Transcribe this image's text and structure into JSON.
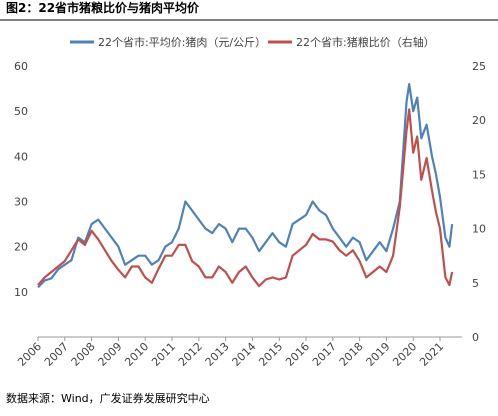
{
  "chart_data": {
    "type": "line",
    "title": "图2：22省市猪粮比价与猪肉平均价",
    "source": "数据来源：Wind，广发证券发展研究中心",
    "x": [
      2006.0,
      2006.25,
      2006.5,
      2006.75,
      2007.0,
      2007.25,
      2007.5,
      2007.75,
      2008.0,
      2008.25,
      2008.5,
      2008.75,
      2009.0,
      2009.25,
      2009.5,
      2009.75,
      2010.0,
      2010.25,
      2010.5,
      2010.75,
      2011.0,
      2011.25,
      2011.5,
      2011.75,
      2012.0,
      2012.25,
      2012.5,
      2012.75,
      2013.0,
      2013.25,
      2013.5,
      2013.75,
      2014.0,
      2014.25,
      2014.5,
      2014.75,
      2015.0,
      2015.25,
      2015.5,
      2015.75,
      2016.0,
      2016.25,
      2016.5,
      2016.75,
      2017.0,
      2017.25,
      2017.5,
      2017.75,
      2018.0,
      2018.25,
      2018.5,
      2018.75,
      2019.0,
      2019.25,
      2019.5,
      2019.75,
      2019.85,
      2020.0,
      2020.15,
      2020.3,
      2020.5,
      2020.7,
      2020.85,
      2021.0,
      2021.2,
      2021.35,
      2021.45
    ],
    "series": [
      {
        "name": "22个省市:平均价:猪肉（元/公斤）",
        "color": "#4f81bd",
        "values": [
          11,
          12.5,
          13,
          15,
          16,
          17,
          22,
          21,
          25,
          26,
          24,
          22,
          20,
          16,
          17,
          18,
          18,
          16,
          17,
          20,
          21,
          24,
          30,
          28,
          26,
          24,
          23,
          25,
          24,
          21,
          24,
          24,
          22,
          19,
          21,
          23,
          21,
          20,
          25,
          26,
          27,
          30,
          28,
          27,
          24,
          22,
          20,
          22,
          21,
          17,
          19,
          21,
          19,
          24,
          30,
          52,
          56,
          50,
          53,
          44,
          47,
          40,
          36,
          31,
          22,
          20,
          25
        ]
      },
      {
        "name": "22个省市:猪粮比价（右轴）",
        "color": "#c0504d",
        "axis": "y2",
        "values": [
          4.8,
          5.5,
          6,
          6.5,
          7,
          8,
          9,
          8.5,
          9.8,
          9,
          8,
          7,
          6.2,
          5.5,
          6.5,
          6.5,
          5.5,
          5,
          6.3,
          7.5,
          7.5,
          8.5,
          8.5,
          7,
          6.5,
          5.5,
          5.5,
          6.5,
          6,
          5,
          6,
          6.5,
          5.5,
          4.7,
          5.3,
          5.5,
          5.3,
          5.5,
          7.5,
          8,
          8.5,
          9.5,
          9,
          9,
          8.8,
          8,
          7.5,
          8,
          7,
          5.5,
          6,
          6.5,
          6,
          7.5,
          12,
          19,
          21,
          17,
          18.5,
          14.5,
          16.5,
          13.5,
          11.5,
          10,
          5.5,
          4.8,
          6
        ]
      }
    ],
    "xlim": [
      2006,
      2021.82
    ],
    "xticks": [
      2006,
      2007,
      2008,
      2009,
      2010,
      2011,
      2012,
      2013,
      2014,
      2015,
      2016,
      2017,
      2018,
      2019,
      2020,
      2021
    ],
    "ylim": [
      0,
      60
    ],
    "yticks": [
      10,
      20,
      30,
      40,
      50,
      60
    ],
    "y2lim": [
      0,
      25
    ],
    "y2ticks": [
      0,
      5,
      10,
      15,
      20,
      25
    ],
    "legend": "top"
  }
}
